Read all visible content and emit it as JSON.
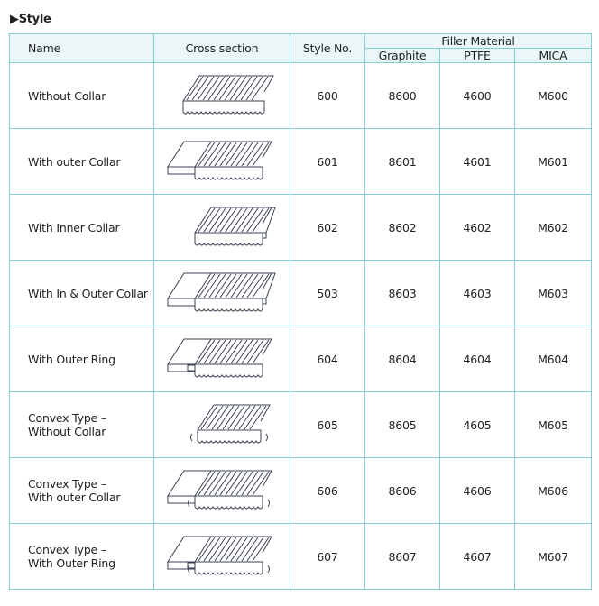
{
  "section_title": "Style",
  "headers": {
    "name": "Name",
    "cross_section": "Cross section",
    "style_no": "Style No.",
    "filler_material": "Filler Material",
    "graphite": "Graphite",
    "ptfe": "PTFE",
    "mica": "MICA"
  },
  "rows": [
    {
      "name": [
        "Without Collar",
        ""
      ],
      "style": "600",
      "graphite": "8600",
      "ptfe": "4600",
      "mica": "M600",
      "variant": "plain"
    },
    {
      "name": [
        "With outer Collar",
        ""
      ],
      "style": "601",
      "graphite": "8601",
      "ptfe": "4601",
      "mica": "M601",
      "variant": "outer"
    },
    {
      "name": [
        "With Inner Collar",
        ""
      ],
      "style": "602",
      "graphite": "8602",
      "ptfe": "4602",
      "mica": "M602",
      "variant": "inner"
    },
    {
      "name": [
        "With In & Outer Collar",
        ""
      ],
      "style": "503",
      "graphite": "8603",
      "ptfe": "4603",
      "mica": "M603",
      "variant": "both"
    },
    {
      "name": [
        "With Outer Ring",
        ""
      ],
      "style": "604",
      "graphite": "8604",
      "ptfe": "4604",
      "mica": "M604",
      "variant": "ring"
    },
    {
      "name": [
        "Convex Type –",
        "Without Collar"
      ],
      "style": "605",
      "graphite": "8605",
      "ptfe": "4605",
      "mica": "M605",
      "variant": "convex"
    },
    {
      "name": [
        "Convex Type –",
        "With outer Collar"
      ],
      "style": "606",
      "graphite": "8606",
      "ptfe": "4606",
      "mica": "M606",
      "variant": "convex-outer"
    },
    {
      "name": [
        "Convex Type –",
        "With Outer Ring"
      ],
      "style": "607",
      "graphite": "8607",
      "ptfe": "4607",
      "mica": "M607",
      "variant": "convex-ring"
    }
  ]
}
